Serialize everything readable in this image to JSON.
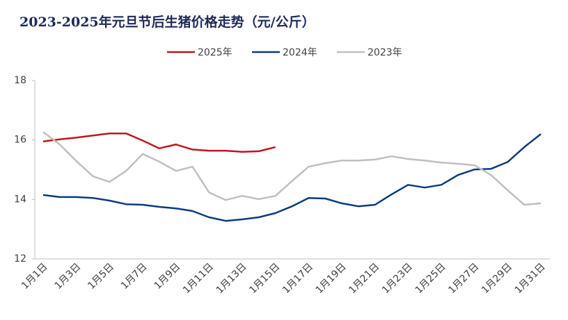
{
  "chart_data": {
    "type": "line",
    "title": "2023-2025年元旦节后生猪价格走势（元/公斤）",
    "categories": [
      "1月1日",
      null,
      "1月3日",
      null,
      "1月5日",
      null,
      "1月7日",
      null,
      "1月9日",
      null,
      "1月11日",
      null,
      "1月13日",
      null,
      "1月15日",
      null,
      "1月17日",
      null,
      "1月19日",
      null,
      "1月21日",
      null,
      "1月23日",
      null,
      "1月25日",
      null,
      "1月27日",
      null,
      "1月29日",
      null,
      "1月31日"
    ],
    "series": [
      {
        "name": "2025年",
        "color": "#c0141c",
        "values": [
          15.95,
          16.02,
          16.08,
          16.15,
          16.22,
          16.22,
          15.98,
          15.72,
          15.85,
          15.68,
          15.64,
          15.64,
          15.6,
          15.62,
          15.76,
          null,
          null,
          null,
          null,
          null,
          null,
          null,
          null,
          null,
          null,
          null,
          null,
          null,
          null,
          null,
          null
        ]
      },
      {
        "name": "2024年",
        "color": "#0b3a7e",
        "values": [
          14.15,
          14.08,
          14.08,
          14.05,
          13.96,
          13.84,
          13.82,
          13.75,
          13.7,
          13.61,
          13.4,
          13.28,
          13.33,
          13.4,
          13.54,
          13.77,
          14.05,
          14.03,
          13.87,
          13.77,
          13.82,
          14.17,
          14.49,
          14.4,
          14.49,
          14.82,
          15.01,
          15.03,
          15.26,
          15.76,
          16.2
        ]
      },
      {
        "name": "2023年",
        "color": "#bfbfbf",
        "values": [
          16.27,
          15.85,
          15.29,
          14.78,
          14.59,
          14.96,
          15.53,
          15.27,
          14.96,
          15.1,
          14.24,
          13.98,
          14.12,
          14.01,
          14.12,
          14.62,
          15.1,
          15.22,
          15.31,
          15.31,
          15.34,
          15.45,
          15.36,
          15.31,
          15.24,
          15.2,
          15.15,
          14.82,
          14.31,
          13.82,
          13.87
        ]
      }
    ],
    "ylim": [
      12,
      18
    ],
    "yticks": [
      12,
      14,
      16,
      18
    ],
    "grid": false,
    "legend": "top"
  }
}
